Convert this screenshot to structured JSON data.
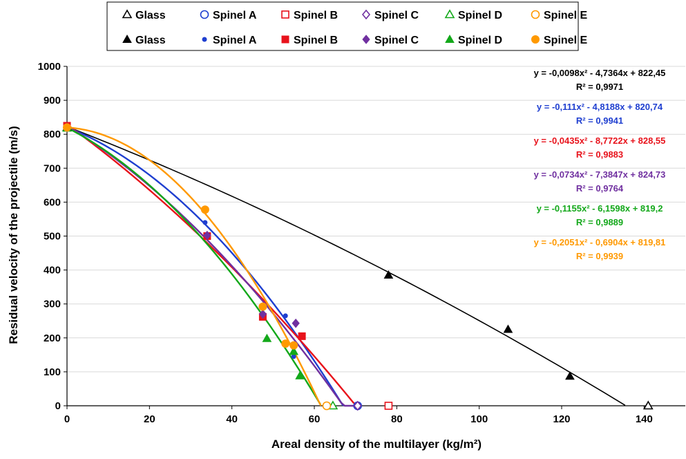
{
  "chart_data": {
    "type": "scatter",
    "xlabel": "Areal density of the multilayer (kg/m²)",
    "ylabel": "Residual velocity of the projectile (m/s)",
    "xlim": [
      0,
      150
    ],
    "ylim": [
      0,
      1000
    ],
    "x_ticks": [
      "0",
      "20",
      "40",
      "60",
      "80",
      "100",
      "120",
      "140"
    ],
    "y_ticks": [
      "0",
      "100",
      "200",
      "300",
      "400",
      "500",
      "600",
      "700",
      "800",
      "900",
      "1000"
    ],
    "grid": "horizontal",
    "legend_position": "top-center",
    "series": [
      {
        "name": "Glass",
        "color": "#000000",
        "open_marker": "triangle",
        "filled_marker": "triangle",
        "filled_points": [
          [
            0,
            820
          ],
          [
            78,
            385
          ],
          [
            107,
            225
          ],
          [
            122,
            87
          ]
        ],
        "open_points": [
          [
            141,
            0
          ]
        ],
        "fit": {
          "a": -0.0098,
          "b": -4.7364,
          "c": 822.45,
          "x_max": 135.4
        },
        "equation": "y = -0,0098x² - 4,7364x + 822,45",
        "r2": "R² = 0,9971"
      },
      {
        "name": "Spinel A",
        "color": "#1f3fd0",
        "open_marker": "circle",
        "filled_marker": "dot",
        "filled_points": [
          [
            0,
            820
          ],
          [
            33.5,
            540
          ],
          [
            53,
            265
          ],
          [
            55,
            145
          ]
        ],
        "open_points": [
          [
            70.5,
            0
          ]
        ],
        "fit": {
          "a": -0.111,
          "b": -4.8188,
          "c": 820.74,
          "x_max": 67
        },
        "equation": "y = -0,111x² - 4,8188x + 820,74",
        "r2": "R² = 0,9941"
      },
      {
        "name": "Spinel B",
        "color": "#e8121b",
        "open_marker": "square",
        "filled_marker": "square",
        "filled_points": [
          [
            0,
            825
          ],
          [
            34,
            500
          ],
          [
            47.5,
            262
          ],
          [
            57,
            205
          ]
        ],
        "open_points": [
          [
            78,
            0
          ]
        ],
        "fit": {
          "a": -0.0435,
          "b": -8.7722,
          "c": 828.55,
          "x_max": 70.3
        },
        "equation": "y = -0,0435x² - 8,7722x + 828,55",
        "r2": "R² = 0,9883"
      },
      {
        "name": "Spinel C",
        "color": "#7030a0",
        "open_marker": "diamond",
        "filled_marker": "diamond",
        "filled_points": [
          [
            0,
            820
          ],
          [
            34,
            502
          ],
          [
            47.5,
            270
          ],
          [
            55.5,
            243
          ]
        ],
        "open_points": [
          [
            70.5,
            0
          ]
        ],
        "fit": {
          "a": -0.0734,
          "b": -7.3847,
          "c": 824.73,
          "x_max": 70
        },
        "equation": "y = -0,0734x² - 7,3847x + 824,73",
        "r2": "R² = 0,9764"
      },
      {
        "name": "Spinel D",
        "color": "#13a81a",
        "open_marker": "triangle",
        "filled_marker": "triangle",
        "filled_points": [
          [
            0,
            818
          ],
          [
            48.5,
            198
          ],
          [
            55,
            160
          ],
          [
            56.5,
            88
          ]
        ],
        "open_points": [
          [
            64.5,
            0
          ]
        ],
        "fit": {
          "a": -0.1155,
          "b": -6.1598,
          "c": 819.2,
          "x_max": 61.5
        },
        "equation": "y = -0,1155x² - 6,1598x + 819,2",
        "r2": "R² = 0,9889"
      },
      {
        "name": "Spinel E",
        "color": "#ff9900",
        "open_marker": "circle",
        "filled_marker": "circle",
        "filled_points": [
          [
            0,
            820
          ],
          [
            33.5,
            578
          ],
          [
            47.5,
            292
          ],
          [
            53,
            183
          ],
          [
            55,
            178
          ]
        ],
        "open_points": [
          [
            63,
            0
          ]
        ],
        "fit": {
          "a": -0.2051,
          "b": -0.6904,
          "c": 819.81,
          "x_max": 61.6
        },
        "equation": "y = -0,2051x² - 0,6904x + 819,81",
        "r2": "R² = 0,9939"
      }
    ]
  }
}
